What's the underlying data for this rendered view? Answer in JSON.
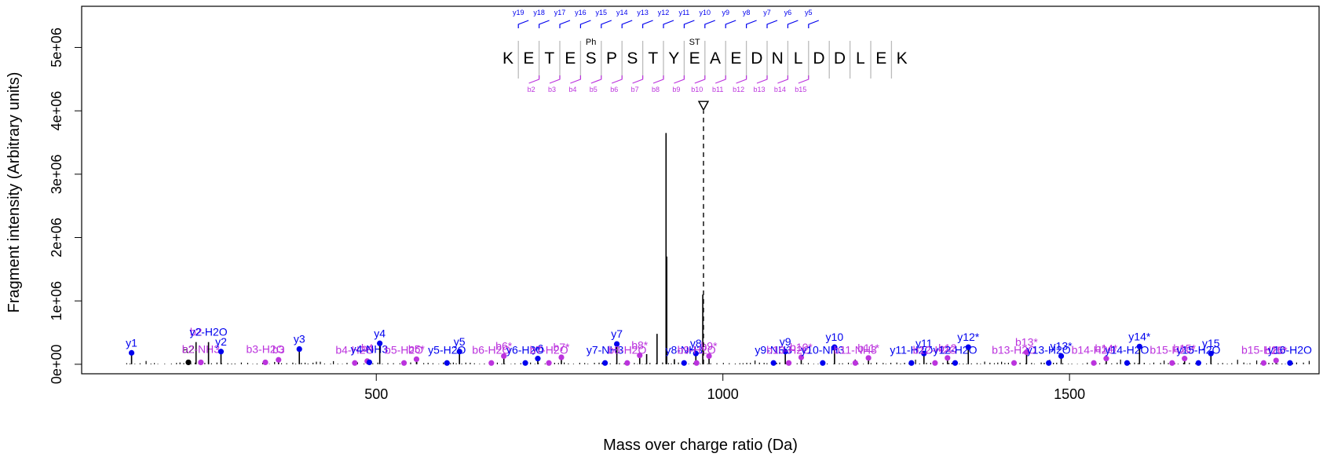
{
  "chart_data": {
    "type": "scatter",
    "subtype": "annotated MS/MS spectrum (stem plot)",
    "xlabel": "Mass over charge ratio (Da)",
    "ylabel": "Fragment intensity (Arbitrary units)",
    "xlim": [
      75,
      1860
    ],
    "ylim": [
      -150000,
      5650000
    ],
    "x_ticks": [
      500,
      1000,
      1500
    ],
    "x_tick_labels": [
      "500",
      "1000",
      "1500"
    ],
    "y_ticks": [
      0,
      1000000,
      2000000,
      3000000,
      4000000,
      5000000
    ],
    "y_tick_labels": [
      "0e+00",
      "1e+06",
      "2e+06",
      "3e+06",
      "4e+06",
      "5e+06"
    ],
    "grid": false,
    "colors": {
      "y_ion": "#0000ee",
      "b_ion": "#bb33dd",
      "other_ion": "#000000",
      "peaks": "#000000",
      "precursor": "#000000",
      "sequence_frame": "#bbbbbb"
    },
    "precursor": {
      "mz": 972,
      "intensity": 4000000
    },
    "sequence": {
      "residues": [
        "K",
        "E",
        "T",
        "E",
        "S",
        "P",
        "S",
        "T",
        "Y",
        "E",
        "A",
        "E",
        "D",
        "N",
        "L",
        "D",
        "D",
        "L",
        "E",
        "K"
      ],
      "modifications": [
        {
          "index": 4,
          "label": "Ph"
        },
        {
          "index": 9,
          "label": "ST"
        }
      ],
      "y_labels": [
        "y5",
        "y6",
        "y7",
        "y8",
        "y9",
        "y10",
        "y11",
        "y12",
        "y13",
        "y14",
        "y15",
        "y16",
        "y17",
        "y18",
        "y19"
      ],
      "b_labels": [
        "b2",
        "b3",
        "b4",
        "b5",
        "b6",
        "b7",
        "b8",
        "b9",
        "b10",
        "b11",
        "b12",
        "b13",
        "b14",
        "b15"
      ]
    },
    "major_peaks": [
      {
        "mz": 918,
        "intensity": 3650000
      },
      {
        "mz": 919,
        "intensity": 1700000
      },
      {
        "mz": 971,
        "intensity": 1100000
      },
      {
        "mz": 905,
        "intensity": 480000
      },
      {
        "mz": 890,
        "intensity": 160000
      },
      {
        "mz": 930,
        "intensity": 80000
      }
    ],
    "ions": [
      {
        "label": "y1",
        "type": "y",
        "mz": 147,
        "intensity": 180000,
        "marker": true
      },
      {
        "label": "a2",
        "type": "other",
        "mz": 229,
        "intensity": 30000,
        "marker": true
      },
      {
        "label": "b2",
        "type": "b",
        "mz": 240,
        "intensity": 350000,
        "marker": false
      },
      {
        "label": "b2-NH3",
        "type": "b",
        "mz": 247,
        "intensity": 30000,
        "marker": true
      },
      {
        "label": "y2-H2O",
        "type": "y",
        "mz": 258,
        "intensity": 350000,
        "marker": false
      },
      {
        "label": "y2",
        "type": "y",
        "mz": 276,
        "intensity": 200000,
        "marker": true
      },
      {
        "label": "b3-H2O",
        "type": "b",
        "mz": 340,
        "intensity": 30000,
        "marker": true
      },
      {
        "label": "b3",
        "type": "b",
        "mz": 359,
        "intensity": 70000,
        "marker": true
      },
      {
        "label": "y3",
        "type": "y",
        "mz": 389,
        "intensity": 240000,
        "marker": true
      },
      {
        "label": "b4-H2O",
        "type": "b",
        "mz": 469,
        "intensity": 20000,
        "marker": true
      },
      {
        "label": "b4",
        "type": "b",
        "mz": 487,
        "intensity": 50000,
        "marker": true
      },
      {
        "label": "y4-NH3",
        "type": "y",
        "mz": 490,
        "intensity": 30000,
        "marker": true
      },
      {
        "label": "y4",
        "type": "y",
        "mz": 505,
        "intensity": 330000,
        "marker": true
      },
      {
        "label": "b5-H2O",
        "type": "b",
        "mz": 540,
        "intensity": 20000,
        "marker": true
      },
      {
        "label": "b5*",
        "type": "b",
        "mz": 558,
        "intensity": 80000,
        "marker": true
      },
      {
        "label": "y5-H2O",
        "type": "y",
        "mz": 602,
        "intensity": 20000,
        "marker": true
      },
      {
        "label": "y5",
        "type": "y",
        "mz": 620,
        "intensity": 200000,
        "marker": true
      },
      {
        "label": "b6-H2O",
        "type": "b",
        "mz": 666,
        "intensity": 20000,
        "marker": true
      },
      {
        "label": "b6*",
        "type": "b",
        "mz": 684,
        "intensity": 130000,
        "marker": true
      },
      {
        "label": "y6-H2O",
        "type": "y",
        "mz": 715,
        "intensity": 20000,
        "marker": true
      },
      {
        "label": "y6",
        "type": "y",
        "mz": 733,
        "intensity": 90000,
        "marker": true
      },
      {
        "label": "b7-H2O",
        "type": "b",
        "mz": 749,
        "intensity": 20000,
        "marker": true
      },
      {
        "label": "b7*",
        "type": "b",
        "mz": 767,
        "intensity": 110000,
        "marker": true
      },
      {
        "label": "y7-NH3",
        "type": "y",
        "mz": 830,
        "intensity": 20000,
        "marker": true
      },
      {
        "label": "y7",
        "type": "y",
        "mz": 847,
        "intensity": 320000,
        "marker": true
      },
      {
        "label": "b8-H2O",
        "type": "b",
        "mz": 862,
        "intensity": 20000,
        "marker": true
      },
      {
        "label": "b8*",
        "type": "b",
        "mz": 880,
        "intensity": 140000,
        "marker": true
      },
      {
        "label": "y8-NH3",
        "type": "y",
        "mz": 944,
        "intensity": 20000,
        "marker": true
      },
      {
        "label": "y8",
        "type": "y",
        "mz": 961,
        "intensity": 170000,
        "marker": true
      },
      {
        "label": "b9-H2O",
        "type": "b",
        "mz": 962,
        "intensity": 20000,
        "marker": true
      },
      {
        "label": "b9*",
        "type": "b",
        "mz": 980,
        "intensity": 130000,
        "marker": true
      },
      {
        "label": "y9-NH3",
        "type": "y",
        "mz": 1073,
        "intensity": 20000,
        "marker": true
      },
      {
        "label": "y9",
        "type": "y",
        "mz": 1090,
        "intensity": 200000,
        "marker": true
      },
      {
        "label": "b10-H2O",
        "type": "b",
        "mz": 1095,
        "intensity": 20000,
        "marker": true
      },
      {
        "label": "b10*",
        "type": "b",
        "mz": 1113,
        "intensity": 110000,
        "marker": true
      },
      {
        "label": "y10-NH3",
        "type": "y",
        "mz": 1144,
        "intensity": 20000,
        "marker": true
      },
      {
        "label": "y10",
        "type": "y",
        "mz": 1161,
        "intensity": 270000,
        "marker": true
      },
      {
        "label": "b11-NH3",
        "type": "b",
        "mz": 1191,
        "intensity": 20000,
        "marker": true
      },
      {
        "label": "b11*",
        "type": "b",
        "mz": 1210,
        "intensity": 100000,
        "marker": true
      },
      {
        "label": "y11-H2O",
        "type": "y",
        "mz": 1272,
        "intensity": 20000,
        "marker": true
      },
      {
        "label": "y11",
        "type": "y",
        "mz": 1290,
        "intensity": 170000,
        "marker": true
      },
      {
        "label": "b12-H2O",
        "type": "b",
        "mz": 1306,
        "intensity": 20000,
        "marker": true
      },
      {
        "label": "b12",
        "type": "b",
        "mz": 1324,
        "intensity": 100000,
        "marker": true
      },
      {
        "label": "y12-H2O",
        "type": "y",
        "mz": 1335,
        "intensity": 20000,
        "marker": true
      },
      {
        "label": "y12*",
        "type": "y",
        "mz": 1354,
        "intensity": 270000,
        "marker": true
      },
      {
        "label": "b13-H2O",
        "type": "b",
        "mz": 1420,
        "intensity": 20000,
        "marker": true
      },
      {
        "label": "b13*",
        "type": "b",
        "mz": 1438,
        "intensity": 190000,
        "marker": true
      },
      {
        "label": "y13-H2O",
        "type": "y",
        "mz": 1470,
        "intensity": 20000,
        "marker": true
      },
      {
        "label": "y13*",
        "type": "y",
        "mz": 1488,
        "intensity": 130000,
        "marker": true
      },
      {
        "label": "b14-H2O",
        "type": "b",
        "mz": 1535,
        "intensity": 20000,
        "marker": true
      },
      {
        "label": "b14*",
        "type": "b",
        "mz": 1553,
        "intensity": 90000,
        "marker": true
      },
      {
        "label": "y14-H2O",
        "type": "y",
        "mz": 1583,
        "intensity": 20000,
        "marker": true
      },
      {
        "label": "y14*",
        "type": "y",
        "mz": 1601,
        "intensity": 280000,
        "marker": true
      },
      {
        "label": "b15-H2O",
        "type": "b",
        "mz": 1648,
        "intensity": 20000,
        "marker": true
      },
      {
        "label": "b15*",
        "type": "b",
        "mz": 1666,
        "intensity": 90000,
        "marker": true
      },
      {
        "label": "y15-H2O",
        "type": "y",
        "mz": 1686,
        "intensity": 20000,
        "marker": true
      },
      {
        "label": "y15",
        "type": "y",
        "mz": 1704,
        "intensity": 170000,
        "marker": true
      },
      {
        "label": "b15-H2O",
        "type": "b",
        "mz": 1780,
        "intensity": 20000,
        "marker": true
      },
      {
        "label": "b15*",
        "type": "b",
        "mz": 1798,
        "intensity": 60000,
        "marker": true
      },
      {
        "label": "y16-H2O",
        "type": "y",
        "mz": 1818,
        "intensity": 20000,
        "marker": true
      }
    ]
  }
}
